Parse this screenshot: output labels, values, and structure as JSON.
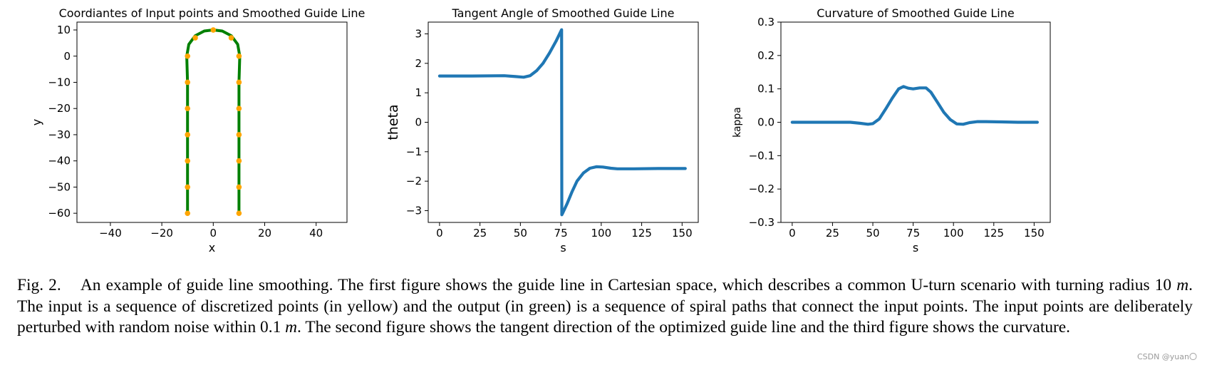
{
  "chart_data": [
    {
      "type": "line",
      "title": "Coordiantes of Input points and Smoothed Guide Line",
      "xlabel": "x",
      "ylabel": "y",
      "xlim": [
        -53,
        52
      ],
      "ylim": [
        -63.5,
        13
      ],
      "xticks": [
        -40,
        -20,
        0,
        20,
        40
      ],
      "yticks": [
        10,
        0,
        -10,
        -20,
        -30,
        -40,
        -50,
        -60
      ],
      "colors": {
        "line": "#008000",
        "points": "#FFA500"
      },
      "series": [
        {
          "kind": "smoothed-line",
          "x": [
            -10,
            -10,
            -10,
            -10,
            -10,
            -10,
            -10.3,
            -9.5,
            -7,
            -3.5,
            0,
            3.5,
            7,
            9.5,
            10.3,
            10,
            10,
            10,
            10,
            10,
            10,
            10
          ],
          "y": [
            -60,
            -50,
            -40,
            -30,
            -20,
            -10,
            0,
            4.5,
            7.8,
            9.6,
            10,
            9.6,
            7.8,
            4.5,
            0,
            -10,
            -20,
            -30,
            -40,
            -50,
            -60,
            -60
          ]
        },
        {
          "kind": "input-points",
          "x": [
            -10,
            -10,
            -10,
            -10,
            -10,
            -10,
            -10,
            -7,
            0,
            7,
            10,
            10,
            10,
            10,
            10,
            10,
            10
          ],
          "y": [
            -60,
            -50,
            -40,
            -30,
            -20,
            -10,
            0,
            7,
            10,
            7,
            0,
            -10,
            -20,
            -30,
            -40,
            -50,
            -60
          ]
        }
      ]
    },
    {
      "type": "line",
      "title": "Tangent Angle of Smoothed Guide Line",
      "xlabel": "s",
      "ylabel": "theta",
      "xlim": [
        -7,
        160
      ],
      "ylim": [
        -3.4,
        3.4
      ],
      "xticks": [
        0,
        25,
        50,
        75,
        100,
        125,
        150
      ],
      "yticks": [
        3,
        2,
        1,
        0,
        -1,
        -2,
        -3
      ],
      "colors": {
        "line": "#1F77B4"
      },
      "series": [
        {
          "x": [
            0,
            20,
            40,
            47,
            52,
            56,
            60,
            64,
            68,
            72,
            75.5,
            75.6,
            76,
            79,
            82,
            85,
            89,
            93,
            97,
            101,
            106,
            110,
            120,
            135,
            152
          ],
          "y": [
            1.57,
            1.57,
            1.58,
            1.55,
            1.53,
            1.58,
            1.75,
            2.0,
            2.35,
            2.75,
            3.14,
            -3.14,
            -3.1,
            -2.75,
            -2.35,
            -2.0,
            -1.72,
            -1.56,
            -1.51,
            -1.52,
            -1.56,
            -1.58,
            -1.58,
            -1.57,
            -1.57
          ]
        }
      ]
    },
    {
      "type": "line",
      "title": "Curvature of Smoothed Guide Line",
      "xlabel": "s",
      "ylabel": "kappa",
      "xlim": [
        -7,
        160
      ],
      "ylim": [
        -0.3,
        0.3
      ],
      "xticks": [
        0,
        25,
        50,
        75,
        100,
        125,
        150
      ],
      "yticks": [
        0.3,
        0.2,
        0.1,
        0.0,
        -0.1,
        -0.2,
        -0.3
      ],
      "ytick_labels": [
        "0.3",
        "0.2",
        "0.1",
        "0.0",
        "−0.1",
        "−0.2",
        "−0.3"
      ],
      "colors": {
        "line": "#1F77B4"
      },
      "series": [
        {
          "x": [
            0,
            10,
            20,
            30,
            36,
            42,
            47,
            50,
            54,
            58,
            62,
            66,
            69,
            72,
            75,
            79,
            83,
            86,
            90,
            94,
            98,
            102,
            106,
            110,
            115,
            120,
            130,
            140,
            152
          ],
          "y": [
            0,
            0,
            0,
            0,
            0.0,
            -0.003,
            -0.006,
            -0.004,
            0.01,
            0.04,
            0.072,
            0.1,
            0.107,
            0.102,
            0.1,
            0.103,
            0.103,
            0.09,
            0.06,
            0.03,
            0.008,
            -0.005,
            -0.006,
            -0.001,
            0.002,
            0.002,
            0.001,
            0.0,
            0.0
          ]
        }
      ]
    }
  ],
  "caption": {
    "label": "Fig. 2.",
    "part1": "An example of guide line smoothing. The first figure shows the guide line in Cartesian space, which describes a common U-turn scenario with turning radius 10 ",
    "unit1": "m",
    "part2": ". The input is a sequence of discretized points (in yellow) and the output (in green) is a sequence of spiral paths that connect the input points. The input points are deliberately perturbed with random noise within 0.1 ",
    "unit2": "m",
    "part3": ". The second figure shows the tangent direction of the optimized guide line and the third figure shows the curvature."
  },
  "watermark": "CSDN @yuan〇"
}
